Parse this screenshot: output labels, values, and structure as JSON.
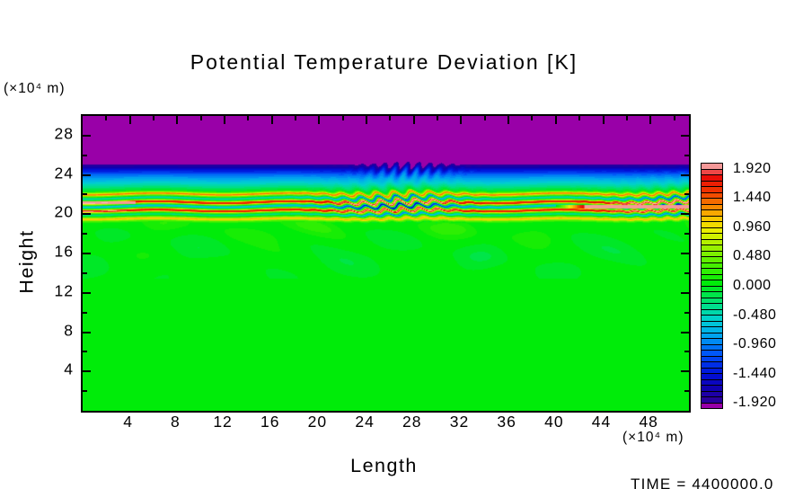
{
  "title": "Potential Temperature Deviation [K]",
  "annotations": {
    "time_label": "TIME = 4400000.0"
  },
  "x_axis": {
    "label": "Length",
    "unit": "(×10⁴ m)"
  },
  "y_axis": {
    "label": "Height",
    "unit": "(×10⁴ m)"
  },
  "chart_data": {
    "type": "heatmap",
    "title": "Potential Temperature Deviation [K]",
    "xlabel": "Length",
    "ylabel": "Height",
    "x_unit": "(×10⁴ m)",
    "y_unit": "(×10⁴ m)",
    "x_range": [
      0,
      51.25
    ],
    "y_range": [
      0,
      30
    ],
    "x_ticks": [
      4,
      8,
      12,
      16,
      20,
      24,
      28,
      32,
      36,
      40,
      44,
      48
    ],
    "y_ticks": [
      4,
      8,
      12,
      16,
      20,
      24,
      28
    ],
    "minor_tick_step": 2,
    "grid": false,
    "legend_position": "right-colorbar",
    "colorbar": {
      "labels": [
        "1.920",
        "1.440",
        "0.960",
        "0.480",
        "0.000",
        "-0.480",
        "-0.960",
        "-1.440",
        "-1.920"
      ],
      "tick_values": [
        1.92,
        1.44,
        0.96,
        0.48,
        0.0,
        -0.48,
        -0.96,
        -1.44,
        -1.92
      ],
      "contour_interval": 0.096,
      "top_value": 2.016,
      "bottom_value": -2.016,
      "segments": 42,
      "out_of_range_low_color": "#9900A8"
    },
    "palette_stops": [
      {
        "v": -1.92,
        "c": "#300098"
      },
      {
        "v": -1.68,
        "c": "#1000B0"
      },
      {
        "v": -1.44,
        "c": "#0010D8"
      },
      {
        "v": -1.1,
        "c": "#0058F8"
      },
      {
        "v": -0.8,
        "c": "#00A8F0"
      },
      {
        "v": -0.55,
        "c": "#00D0D0"
      },
      {
        "v": -0.3,
        "c": "#00E080"
      },
      {
        "v": -0.05,
        "c": "#00E828"
      },
      {
        "v": 0.05,
        "c": "#00EC08"
      },
      {
        "v": 0.35,
        "c": "#48F000"
      },
      {
        "v": 0.65,
        "c": "#A0F000"
      },
      {
        "v": 0.9,
        "c": "#E8F000"
      },
      {
        "v": 1.1,
        "c": "#F8C800"
      },
      {
        "v": 1.3,
        "c": "#F88800"
      },
      {
        "v": 1.55,
        "c": "#F03800"
      },
      {
        "v": 1.8,
        "c": "#E80808"
      },
      {
        "v": 1.95,
        "c": "#F48C8C"
      },
      {
        "v": 2.02,
        "c": "#F8BCBC"
      }
    ],
    "field_model": {
      "description": "Horizontally layered potential-temperature deviation field: uniform deviation < -1.92 K (purple) above z=25; sharp negative gradient (dark blue to cyan) from z=25 down to z=22.9; near-zero green by z=22.35; strong alternating positive/negative shear layers (red/orange/yellow stripes interleaved with cyan/dark-blue sheets, peaks near +1.9 K) between z=19.2 and z=22.35; weak mottled wisps (0 to +-0.2 K) between z=13.4 and z=19.2; uniform ~0 K green below.",
      "purple_top_boundary_z": 25.05,
      "blue_gradient": {
        "z": [
          24.0,
          25.05
        ],
        "v": [
          -1.02,
          -1.92
        ]
      },
      "cyan_gradient": {
        "z": [
          22.9,
          24.0
        ],
        "v": [
          -0.38,
          -1.02
        ]
      },
      "green_to_zero": {
        "z": [
          22.35,
          22.9
        ],
        "v": [
          0.0,
          -0.38
        ]
      },
      "stripe_zone": {
        "z": [
          19.15,
          22.35
        ],
        "wavelength": 0.85,
        "envelope_center": 20.9,
        "envelope_width": 1.35,
        "peak_value": 1.95,
        "red_line_heights": [
          22.1,
          21.2,
          20.4,
          19.5
        ]
      },
      "mottle_zone": {
        "z": [
          13.4,
          19.15
        ],
        "amplitude": 0.2
      },
      "background_value": 0.04,
      "wave_packet": {
        "center_length": 27,
        "finger_wavelength": 0.95,
        "interface_z": 24.6,
        "note": "gravity-wave fingers ripple the purple/blue interface and bend the stripes near length 24-32"
      },
      "pink_streak_right": {
        "z": [
          20.6,
          20.9
        ],
        "length_from": 40,
        "value": 1.95
      },
      "pink_streak_left": {
        "z": [
          21.05,
          21.28
        ],
        "length_to": 4.5,
        "value": 1.93
      }
    }
  }
}
